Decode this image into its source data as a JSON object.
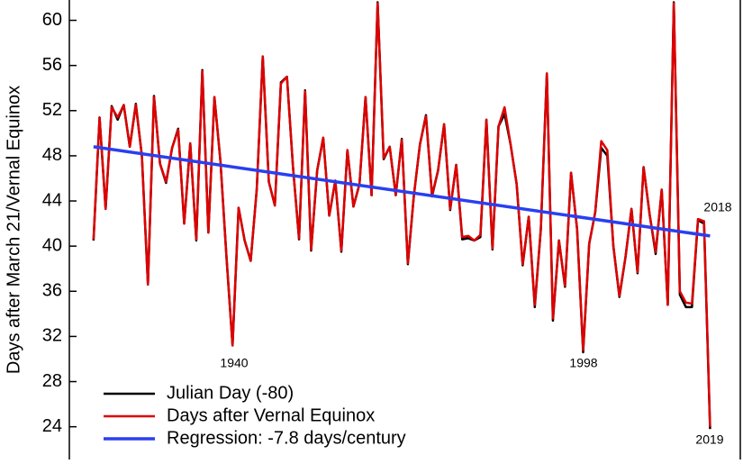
{
  "chart_data": {
    "type": "line",
    "y_label": "Days after March 21/Vernal Equinox",
    "xlim": [
      1913,
      2024
    ],
    "ylim": [
      21.1,
      61.8
    ],
    "yticks": [
      24,
      28,
      32,
      36,
      40,
      44,
      48,
      52,
      56,
      60
    ],
    "x": [
      1917,
      1918,
      1919,
      1920,
      1921,
      1922,
      1923,
      1924,
      1925,
      1926,
      1927,
      1928,
      1929,
      1930,
      1931,
      1932,
      1933,
      1934,
      1935,
      1936,
      1937,
      1938,
      1939,
      1940,
      1941,
      1942,
      1943,
      1944,
      1945,
      1946,
      1947,
      1948,
      1949,
      1950,
      1951,
      1952,
      1953,
      1954,
      1955,
      1956,
      1957,
      1958,
      1959,
      1960,
      1961,
      1962,
      1963,
      1964,
      1965,
      1966,
      1967,
      1968,
      1969,
      1970,
      1971,
      1972,
      1973,
      1974,
      1975,
      1976,
      1977,
      1978,
      1979,
      1980,
      1981,
      1982,
      1983,
      1984,
      1985,
      1986,
      1987,
      1988,
      1989,
      1990,
      1991,
      1992,
      1993,
      1994,
      1995,
      1996,
      1997,
      1998,
      1999,
      2000,
      2001,
      2002,
      2003,
      2004,
      2005,
      2006,
      2007,
      2008,
      2009,
      2010,
      2011,
      2012,
      2013,
      2014,
      2015,
      2016,
      2017,
      2018,
      2019
    ],
    "series": [
      {
        "name": "Julian Day (-80)",
        "color": "#000000",
        "values": [
          40.5,
          51.4,
          43.3,
          52.4,
          51.2,
          52.5,
          48.8,
          52.6,
          48.0,
          36.6,
          53.3,
          47.3,
          45.6,
          48.7,
          50.4,
          42.0,
          49.1,
          40.5,
          55.6,
          41.2,
          53.2,
          47.5,
          39.0,
          31.2,
          43.4,
          40.5,
          38.7,
          45.0,
          56.8,
          45.7,
          43.6,
          54.5,
          55.0,
          47.0,
          40.6,
          53.8,
          39.6,
          46.7,
          49.6,
          42.7,
          45.8,
          39.5,
          48.5,
          43.5,
          45.5,
          53.2,
          44.5,
          61.6,
          47.7,
          48.8,
          44.5,
          49.5,
          38.4,
          44.5,
          49.0,
          51.6,
          44.4,
          46.7,
          50.8,
          43.2,
          47.2,
          40.6,
          40.7,
          40.5,
          40.8,
          51.2,
          39.7,
          50.6,
          51.7,
          49.0,
          45.5,
          38.3,
          42.6,
          34.6,
          41.5,
          55.3,
          33.4,
          40.5,
          36.4,
          46.5,
          41.5,
          30.6,
          40.2,
          43.0,
          48.7,
          48.0,
          40.0,
          35.5,
          39.0,
          43.3,
          37.6,
          47.0,
          42.8,
          39.3,
          45.0,
          34.8,
          61.6,
          35.7,
          34.6,
          34.6,
          42.3,
          42.0,
          23.8
        ]
      },
      {
        "name": "Days after Vernal Equinox",
        "color": "#dd0000",
        "values": [
          40.6,
          51.4,
          43.3,
          52.3,
          51.4,
          52.5,
          48.8,
          52.5,
          48.0,
          36.6,
          53.2,
          47.3,
          45.7,
          48.7,
          50.3,
          42.0,
          49.1,
          40.6,
          55.5,
          41.2,
          53.2,
          47.5,
          39.0,
          31.2,
          43.4,
          40.5,
          38.7,
          45.0,
          56.8,
          45.7,
          43.6,
          54.4,
          55.0,
          47.0,
          40.7,
          53.7,
          39.7,
          46.7,
          49.6,
          42.7,
          45.8,
          39.6,
          48.5,
          43.5,
          45.5,
          53.2,
          44.5,
          61.5,
          47.8,
          48.8,
          44.5,
          49.4,
          38.5,
          44.5,
          49.0,
          51.5,
          44.5,
          46.7,
          50.8,
          43.3,
          47.2,
          40.8,
          40.9,
          40.5,
          41.0,
          51.2,
          39.8,
          50.6,
          52.3,
          49.0,
          45.5,
          38.4,
          42.6,
          34.8,
          41.5,
          55.3,
          33.6,
          40.5,
          36.5,
          46.5,
          41.5,
          30.8,
          40.2,
          43.0,
          49.3,
          48.5,
          40.0,
          35.6,
          39.0,
          43.3,
          37.7,
          47.0,
          42.8,
          39.5,
          45.0,
          34.8,
          61.5,
          36.0,
          35.0,
          34.9,
          42.4,
          42.2,
          24.0
        ]
      },
      {
        "name": "Regression: -7.8 days/century",
        "color": "#2a3ff0",
        "x": [
          1917,
          2019
        ],
        "values": [
          48.8,
          40.9
        ]
      }
    ],
    "annotations": [
      "1940",
      "1998",
      "2018",
      "2019"
    ]
  }
}
